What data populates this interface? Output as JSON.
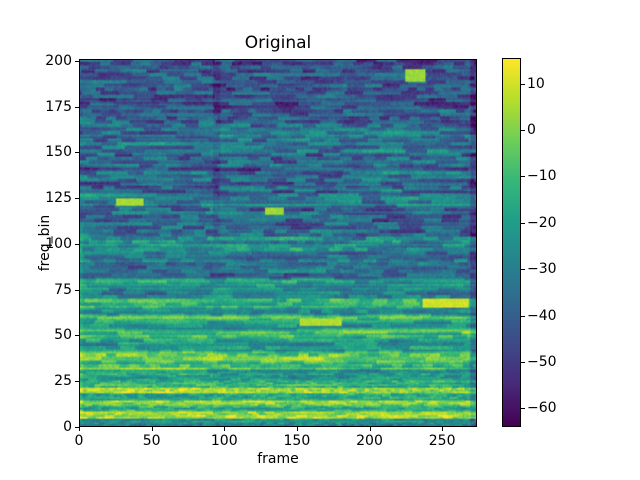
{
  "figure": {
    "background": "#ffffff"
  },
  "chart_data": {
    "type": "heatmap",
    "title": "Original",
    "xlabel": "frame",
    "ylabel": "freq_bin",
    "x_range": [
      0,
      274
    ],
    "y_range": [
      0,
      201
    ],
    "xticks": {
      "values": [
        0,
        50,
        100,
        150,
        200,
        250
      ],
      "labels": [
        "0",
        "50",
        "100",
        "150",
        "200",
        "250"
      ]
    },
    "yticks": {
      "values": [
        0,
        25,
        50,
        75,
        100,
        125,
        150,
        175,
        200
      ],
      "labels": [
        "0",
        "25",
        "50",
        "75",
        "100",
        "125",
        "150",
        "175",
        "200"
      ]
    },
    "grid": false,
    "colorbar": {
      "position": "right",
      "vmin": -64,
      "vmax": 15.5,
      "tick_values": [
        10,
        0,
        -10,
        -20,
        -30,
        -40,
        -50,
        -60
      ],
      "tick_labels": [
        "10",
        "0",
        "−10",
        "−20",
        "−30",
        "−40",
        "−50",
        "−60"
      ]
    },
    "colormap": {
      "name": "viridis",
      "stops": [
        "#440154",
        "#482878",
        "#3e4989",
        "#31688e",
        "#26828e",
        "#1f9e89",
        "#35b779",
        "#6ece58",
        "#b5de2b",
        "#fde725"
      ]
    },
    "texture": {
      "description": "STFT-like magnitude spectrogram (dB): bright harmonic rows at low freq bins, dark blocky noise at high bins",
      "seed": 42,
      "row_bands": [
        [
          0,
          3,
          -28
        ],
        [
          4,
          7,
          4
        ],
        [
          8,
          10,
          -12
        ],
        [
          11,
          13,
          2
        ],
        [
          14,
          17,
          -16
        ],
        [
          18,
          20,
          3
        ],
        [
          21,
          24,
          -14
        ],
        [
          25,
          30,
          -22
        ],
        [
          31,
          35,
          -10
        ],
        [
          36,
          40,
          -6
        ],
        [
          41,
          47,
          -20
        ],
        [
          48,
          52,
          -10
        ],
        [
          53,
          56,
          -24
        ],
        [
          57,
          60,
          -14
        ],
        [
          61,
          64,
          -26
        ],
        [
          65,
          69,
          -14
        ],
        [
          70,
          76,
          -28
        ],
        [
          77,
          80,
          -20
        ],
        [
          81,
          95,
          -34
        ],
        [
          96,
          103,
          -24
        ],
        [
          104,
          120,
          -38
        ],
        [
          121,
          127,
          -30
        ],
        [
          128,
          148,
          -38
        ],
        [
          149,
          166,
          -36
        ],
        [
          167,
          200,
          -42
        ]
      ],
      "segment_boundaries": [
        0,
        92,
        182,
        274
      ],
      "highlights": [
        {
          "frames": [
            237,
            268
          ],
          "bins": [
            65,
            69
          ],
          "db": 10
        },
        {
          "frames": [
            152,
            180
          ],
          "bins": [
            55,
            58
          ],
          "db": 6
        },
        {
          "frames": [
            225,
            238
          ],
          "bins": [
            189,
            195
          ],
          "db": 3
        },
        {
          "frames": [
            25,
            43
          ],
          "bins": [
            121,
            124
          ],
          "db": 5
        },
        {
          "frames": [
            128,
            140
          ],
          "bins": [
            116,
            119
          ],
          "db": 4
        }
      ],
      "right_dark_from_frame": 270,
      "left_bright_frames": 2
    }
  }
}
